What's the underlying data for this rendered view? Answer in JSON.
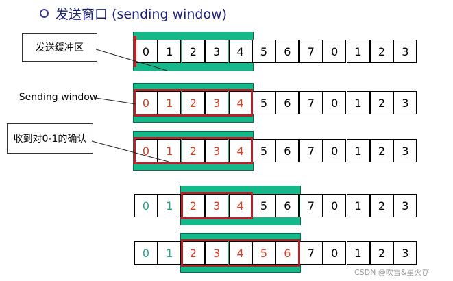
{
  "title": "发送窗口 (sending window)",
  "callouts": {
    "buffer": "发送缓冲区",
    "window": "Sending window",
    "ack": "收到对0-1的确认"
  },
  "rows": [
    {
      "cells": [
        "0",
        "1",
        "2",
        "3",
        "4",
        "5",
        "6",
        "7",
        "0",
        "1",
        "2",
        "3"
      ],
      "colors": [
        "k",
        "k",
        "k",
        "k",
        "k",
        "k",
        "k",
        "k",
        "k",
        "k",
        "k",
        "k"
      ],
      "band": [
        0,
        5
      ],
      "frame": null,
      "marker": true
    },
    {
      "cells": [
        "0",
        "1",
        "2",
        "3",
        "4",
        "5",
        "6",
        "7",
        "0",
        "1",
        "2",
        "3"
      ],
      "colors": [
        "r",
        "r",
        "r",
        "r",
        "r",
        "k",
        "k",
        "k",
        "k",
        "k",
        "k",
        "k"
      ],
      "band": [
        0,
        5
      ],
      "frame": [
        0,
        5
      ],
      "marker": false
    },
    {
      "cells": [
        "0",
        "1",
        "2",
        "3",
        "4",
        "5",
        "6",
        "7",
        "0",
        "1",
        "2",
        "3"
      ],
      "colors": [
        "r",
        "r",
        "r",
        "r",
        "r",
        "k",
        "k",
        "k",
        "k",
        "k",
        "k",
        "k"
      ],
      "band": [
        0,
        5
      ],
      "frame": [
        0,
        5
      ],
      "marker": false
    },
    {
      "cells": [
        "0",
        "1",
        "2",
        "3",
        "4",
        "5",
        "6",
        "7",
        "0",
        "1",
        "2",
        "3"
      ],
      "colors": [
        "t",
        "t",
        "r",
        "r",
        "r",
        "k",
        "k",
        "k",
        "k",
        "k",
        "k",
        "k"
      ],
      "band": [
        2,
        7
      ],
      "frame": [
        2,
        5
      ],
      "marker": false
    },
    {
      "cells": [
        "0",
        "1",
        "2",
        "3",
        "4",
        "5",
        "6",
        "7",
        "0",
        "1",
        "2",
        "3"
      ],
      "colors": [
        "t",
        "t",
        "r",
        "r",
        "r",
        "r",
        "r",
        "k",
        "k",
        "k",
        "k",
        "k"
      ],
      "band": [
        2,
        7
      ],
      "frame": [
        2,
        7
      ],
      "marker": false
    }
  ],
  "watermark": "CSDN @吹雪&星火び",
  "colors": {
    "band": "#14b889",
    "frame": "#b8202a",
    "red_text": "#e03a20",
    "teal_text": "#1fa88a"
  }
}
